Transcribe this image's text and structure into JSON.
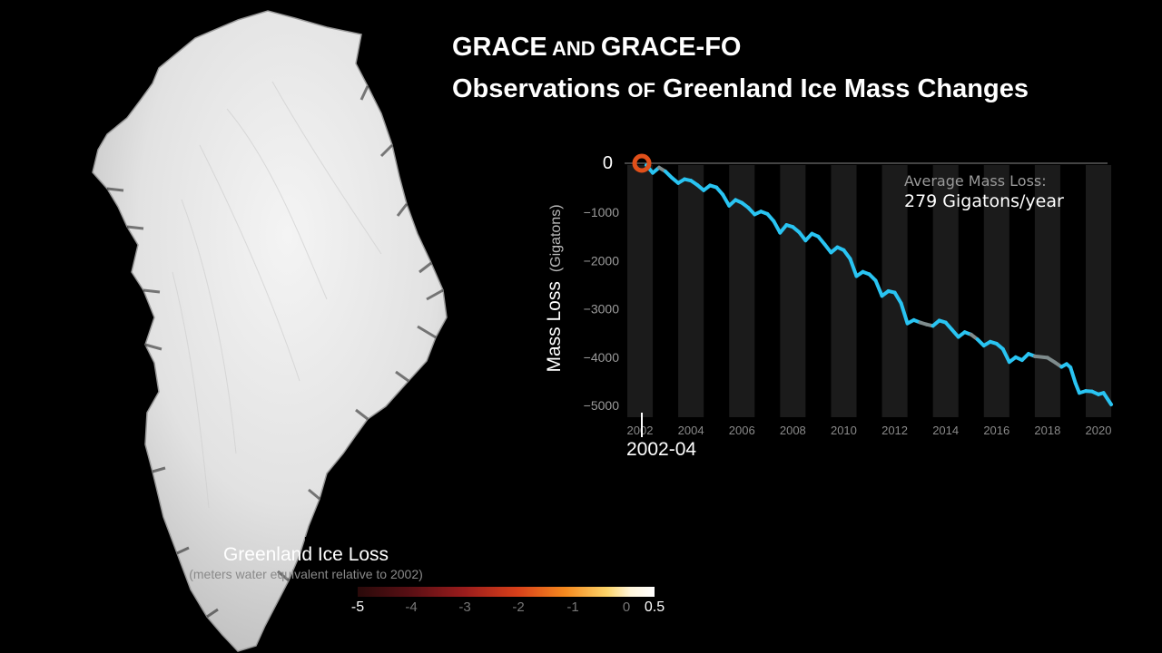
{
  "title": {
    "line1_a": "GRACE",
    "line1_b": " and ",
    "line1_c": "GRACE-FO",
    "line2_a": "Observations ",
    "line2_b": "of",
    "line2_c": " Greenland Ice Mass Changes"
  },
  "annotation": {
    "label": "Average Mass Loss:",
    "value": "279 Gigatons/year"
  },
  "current_date": "2002-04",
  "legend": {
    "title": "Greenland Ice Loss",
    "subtitle": "(meters water equivalent relative to 2002)",
    "ticks": [
      "-5",
      "-4",
      "-3",
      "-2",
      "-1",
      "0",
      "0.5"
    ]
  },
  "colors": {
    "line": "#29c4f2",
    "line_gap": "#7f8c8d",
    "marker": "#e0501a",
    "band": "#1b1b1b"
  },
  "chart_data": {
    "type": "line",
    "ylabel": "Mass Loss",
    "ylabel_unit": "(Gigatons)",
    "xlim": [
      2002,
      2020.5
    ],
    "ylim": [
      -5000,
      0
    ],
    "xticks": [
      2002,
      2004,
      2006,
      2008,
      2010,
      2012,
      2014,
      2016,
      2018,
      2020
    ],
    "yticks": [
      0,
      -1000,
      -2000,
      -3000,
      -4000,
      -5000
    ],
    "ytick_labels": [
      "0",
      "−1000",
      "−2000",
      "−3000",
      "−4000",
      "−5000"
    ],
    "series": [
      {
        "points": [
          [
            2002.25,
            -40
          ],
          [
            2002.5,
            -200
          ],
          [
            2002.75,
            -90
          ],
          [
            2003.0,
            -170
          ],
          [
            2003.25,
            -300
          ],
          [
            2003.5,
            -410
          ],
          [
            2003.75,
            -330
          ],
          [
            2004.0,
            -360
          ],
          [
            2004.25,
            -450
          ],
          [
            2004.5,
            -560
          ],
          [
            2004.75,
            -460
          ],
          [
            2005.0,
            -500
          ],
          [
            2005.25,
            -650
          ],
          [
            2005.5,
            -880
          ],
          [
            2005.75,
            -760
          ],
          [
            2006.0,
            -820
          ],
          [
            2006.25,
            -920
          ],
          [
            2006.5,
            -1060
          ],
          [
            2006.75,
            -1000
          ],
          [
            2007.0,
            -1050
          ],
          [
            2007.25,
            -1200
          ],
          [
            2007.5,
            -1440
          ],
          [
            2007.75,
            -1280
          ],
          [
            2008.0,
            -1320
          ],
          [
            2008.25,
            -1430
          ],
          [
            2008.5,
            -1600
          ],
          [
            2008.75,
            -1460
          ],
          [
            2009.0,
            -1520
          ],
          [
            2009.25,
            -1680
          ],
          [
            2009.5,
            -1850
          ],
          [
            2009.75,
            -1740
          ],
          [
            2010.0,
            -1800
          ],
          [
            2010.25,
            -1980
          ],
          [
            2010.5,
            -2340
          ],
          [
            2010.75,
            -2250
          ],
          [
            2011.0,
            -2300
          ],
          [
            2011.25,
            -2430
          ],
          [
            2011.5,
            -2750
          ],
          [
            2011.75,
            -2650
          ],
          [
            2012.0,
            -2680
          ],
          [
            2012.25,
            -2900
          ],
          [
            2012.5,
            -3320
          ],
          [
            2012.75,
            -3250
          ],
          [
            2013.0,
            -3300
          ],
          [
            2013.25,
            -3340
          ],
          [
            2013.5,
            -3370
          ],
          [
            2013.75,
            -3260
          ],
          [
            2014.0,
            -3300
          ],
          [
            2014.25,
            -3450
          ],
          [
            2014.5,
            -3600
          ],
          [
            2014.75,
            -3500
          ],
          [
            2015.0,
            -3550
          ],
          [
            2015.25,
            -3650
          ],
          [
            2015.5,
            -3780
          ],
          [
            2015.75,
            -3700
          ],
          [
            2016.0,
            -3740
          ],
          [
            2016.25,
            -3850
          ],
          [
            2016.5,
            -4120
          ],
          [
            2016.75,
            -4020
          ],
          [
            2017.0,
            -4080
          ],
          [
            2017.25,
            -3950
          ],
          [
            2017.5,
            -4000
          ],
          [
            2018.0,
            -4030
          ],
          [
            2018.3,
            -4130
          ],
          [
            2018.55,
            -4220
          ],
          [
            2018.75,
            -4160
          ],
          [
            2018.9,
            -4230
          ],
          [
            2019.1,
            -4560
          ],
          [
            2019.25,
            -4760
          ],
          [
            2019.5,
            -4720
          ],
          [
            2019.75,
            -4730
          ],
          [
            2020.0,
            -4790
          ],
          [
            2020.2,
            -4760
          ],
          [
            2020.5,
            -5000
          ]
        ],
        "gray_ranges": [
          [
            2002.75,
            2003.1
          ],
          [
            2012.9,
            2013.6
          ],
          [
            2014.9,
            2015.3
          ],
          [
            2017.4,
            2018.45
          ]
        ]
      }
    ],
    "marker": {
      "x": 2002.25,
      "y": 0
    }
  }
}
